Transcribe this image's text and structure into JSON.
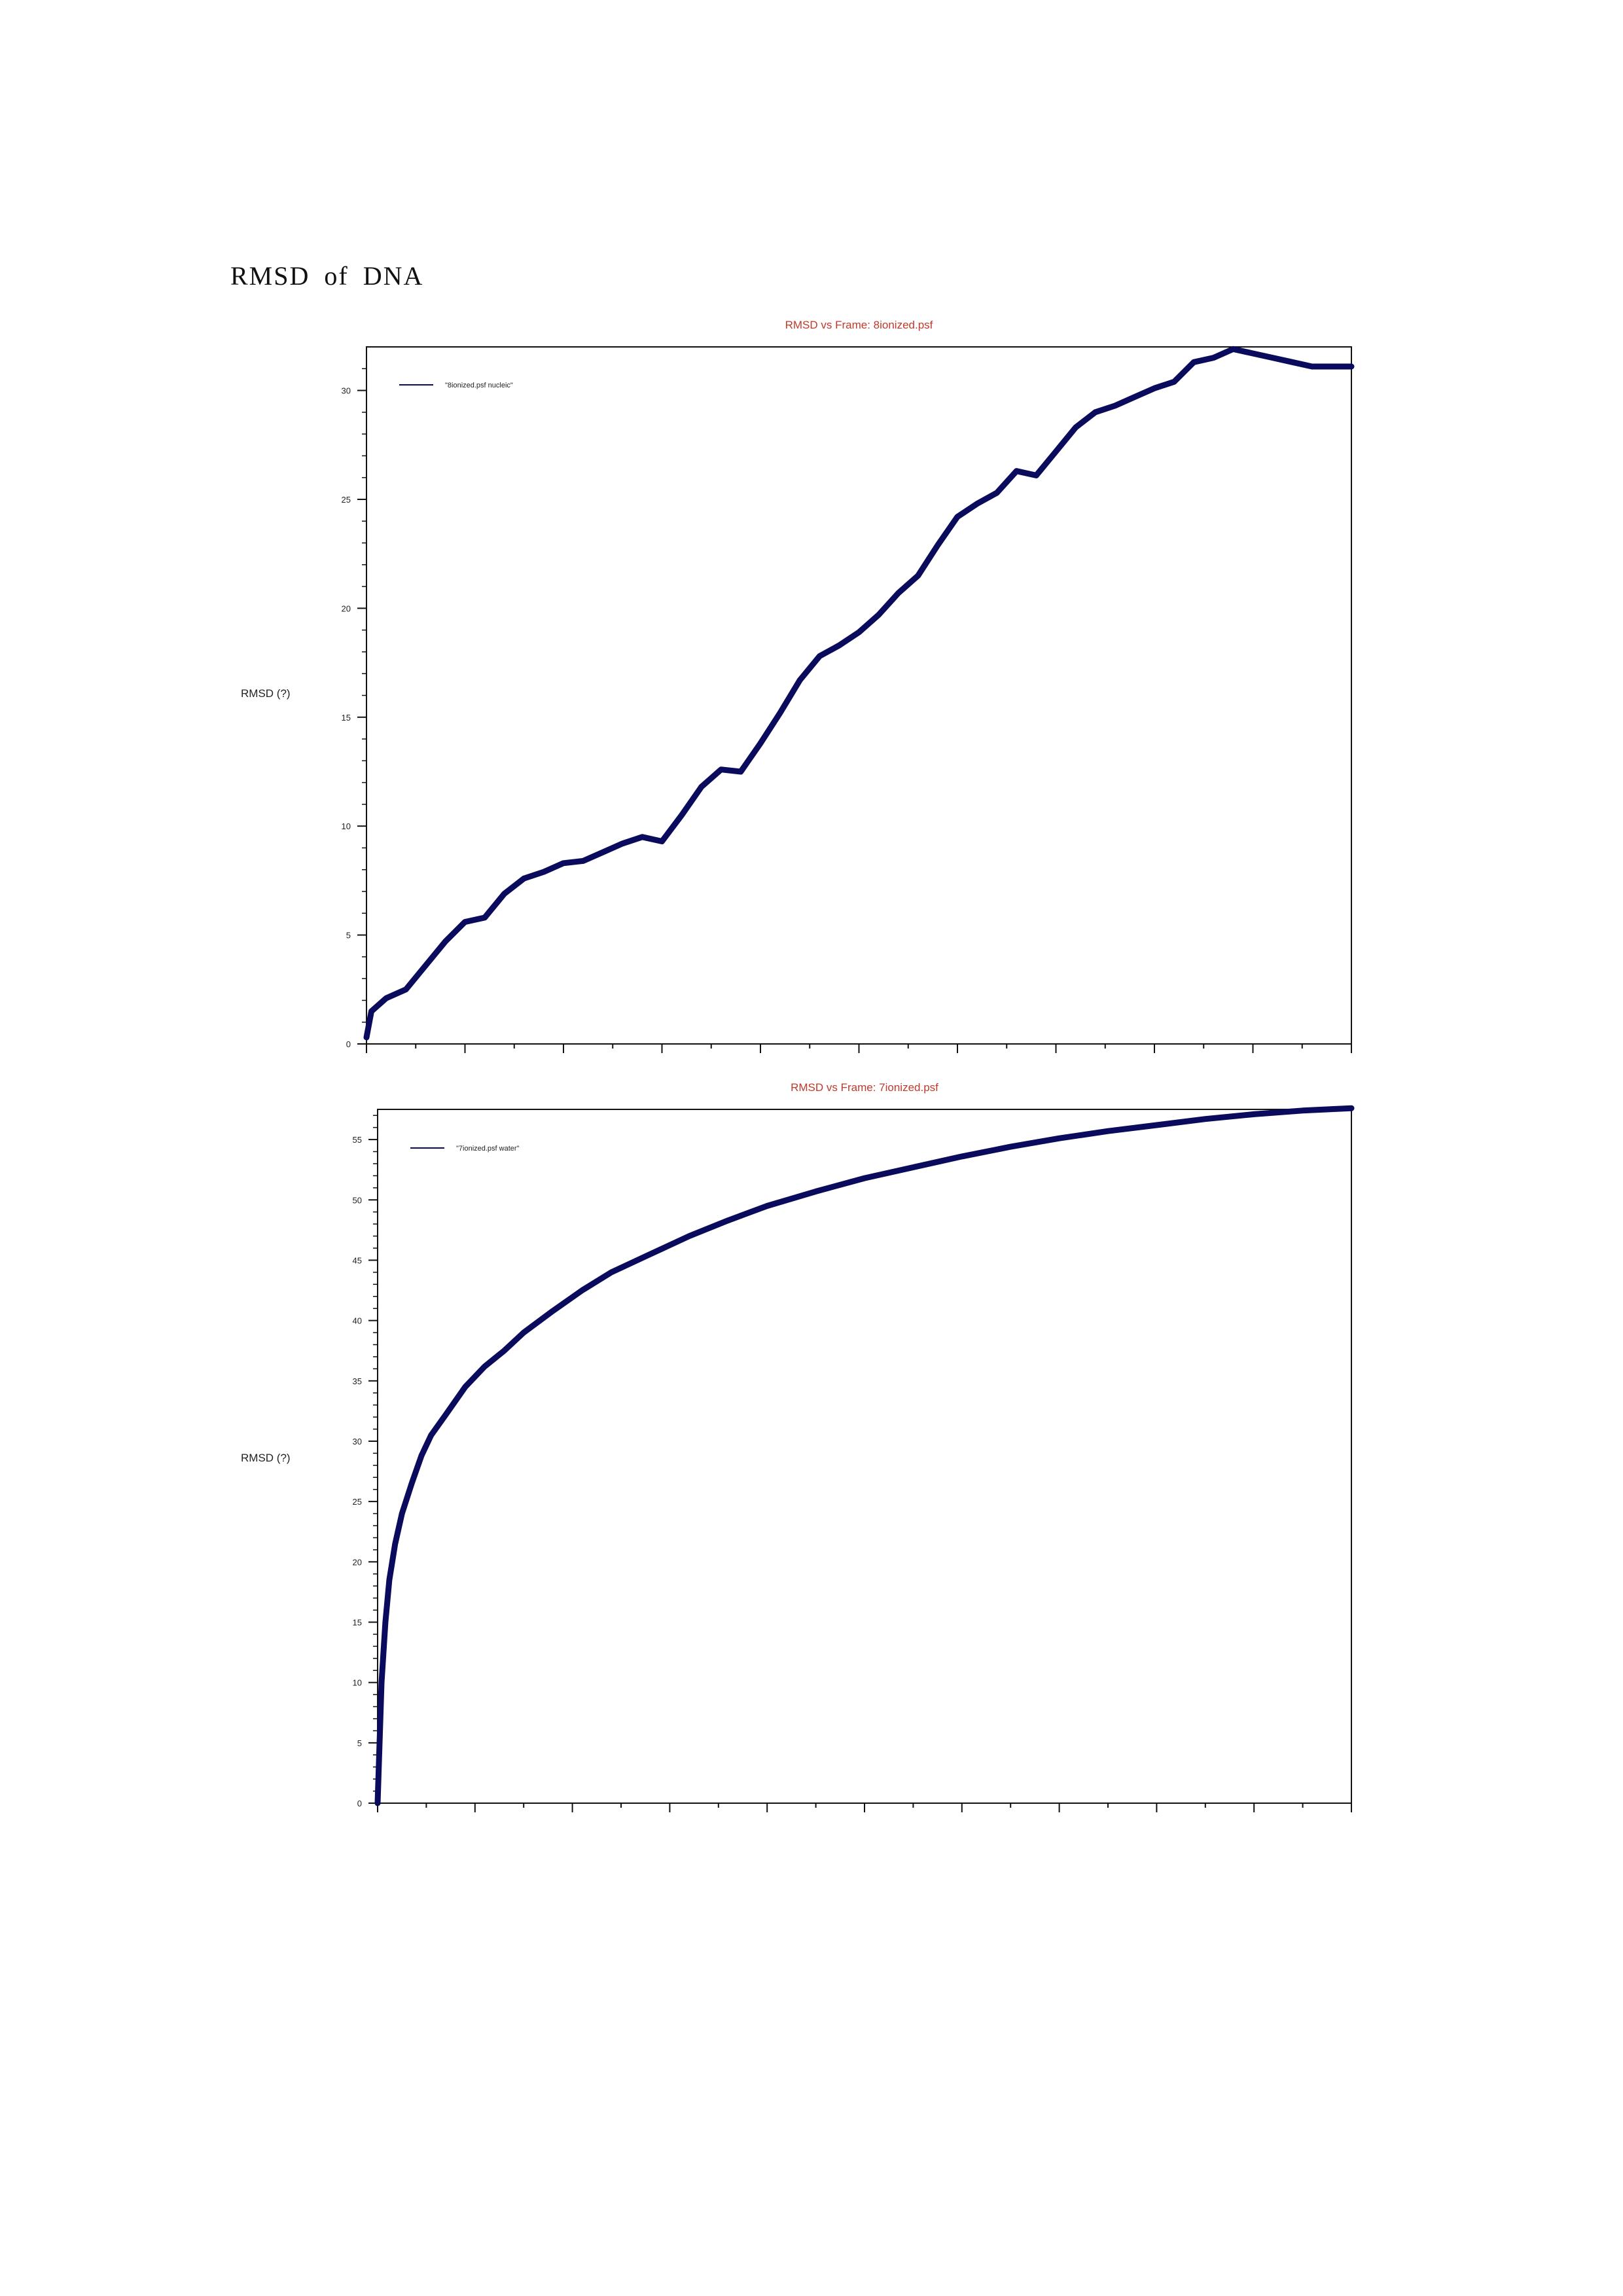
{
  "document": {
    "heading": "RMSD of DNA"
  },
  "chart_data": [
    {
      "type": "line",
      "title": "RMSD vs Frame: 8ionized.psf",
      "ylabel": "RMSD (?)",
      "xlabel": "",
      "ylim": [
        0,
        32
      ],
      "yticks": [
        0,
        5,
        10,
        15,
        20,
        25,
        30
      ],
      "xlim": [
        0,
        1
      ],
      "grid": false,
      "legend_position": "top-left",
      "series": [
        {
          "name": "\"8ionized.psf nucleic\"",
          "color": "#0b0b5e",
          "x": [
            0,
            0.005,
            0.02,
            0.04,
            0.06,
            0.08,
            0.1,
            0.12,
            0.14,
            0.16,
            0.18,
            0.2,
            0.22,
            0.24,
            0.26,
            0.28,
            0.3,
            0.32,
            0.34,
            0.36,
            0.38,
            0.4,
            0.42,
            0.44,
            0.46,
            0.48,
            0.5,
            0.52,
            0.54,
            0.56,
            0.58,
            0.6,
            0.62,
            0.64,
            0.66,
            0.68,
            0.7,
            0.72,
            0.74,
            0.76,
            0.78,
            0.8,
            0.82,
            0.84,
            0.86,
            0.88,
            0.9,
            0.92,
            0.94,
            0.96,
            1.0
          ],
          "y": [
            0.3,
            1.5,
            2.1,
            2.5,
            3.6,
            4.7,
            5.6,
            5.8,
            6.9,
            7.6,
            7.9,
            8.3,
            8.4,
            8.8,
            9.2,
            9.5,
            9.3,
            10.5,
            11.8,
            12.6,
            12.5,
            13.8,
            15.2,
            16.7,
            17.8,
            18.3,
            18.9,
            19.7,
            20.7,
            21.5,
            22.9,
            24.2,
            24.8,
            25.3,
            26.3,
            26.1,
            27.2,
            28.3,
            29.0,
            29.3,
            29.7,
            30.1,
            30.4,
            31.3,
            31.5,
            31.9,
            31.7,
            31.5,
            31.3,
            31.1,
            31.1
          ]
        }
      ]
    },
    {
      "type": "line",
      "title": "RMSD vs Frame: 7ionized.psf",
      "ylabel": "RMSD (?)",
      "xlabel": "",
      "ylim": [
        0,
        57.5
      ],
      "yticks": [
        0,
        5,
        10,
        15,
        20,
        25,
        30,
        35,
        40,
        45,
        50,
        55
      ],
      "xlim": [
        0,
        1
      ],
      "grid": false,
      "legend_position": "top-left",
      "series": [
        {
          "name": "\"7ionized.psf water\"",
          "color": "#0b0b5e",
          "x": [
            0,
            0.002,
            0.004,
            0.008,
            0.012,
            0.018,
            0.025,
            0.035,
            0.045,
            0.055,
            0.07,
            0.09,
            0.11,
            0.13,
            0.15,
            0.18,
            0.21,
            0.24,
            0.28,
            0.32,
            0.36,
            0.4,
            0.45,
            0.5,
            0.55,
            0.6,
            0.65,
            0.7,
            0.75,
            0.8,
            0.85,
            0.9,
            0.95,
            1.0
          ],
          "y": [
            0,
            5,
            10,
            15,
            18.5,
            21.5,
            24,
            26.5,
            28.8,
            30.5,
            32.2,
            34.5,
            36.2,
            37.5,
            39,
            40.8,
            42.5,
            44,
            45.5,
            47,
            48.3,
            49.5,
            50.7,
            51.8,
            52.7,
            53.6,
            54.4,
            55.1,
            55.7,
            56.2,
            56.7,
            57.1,
            57.4,
            57.6
          ]
        }
      ]
    }
  ]
}
